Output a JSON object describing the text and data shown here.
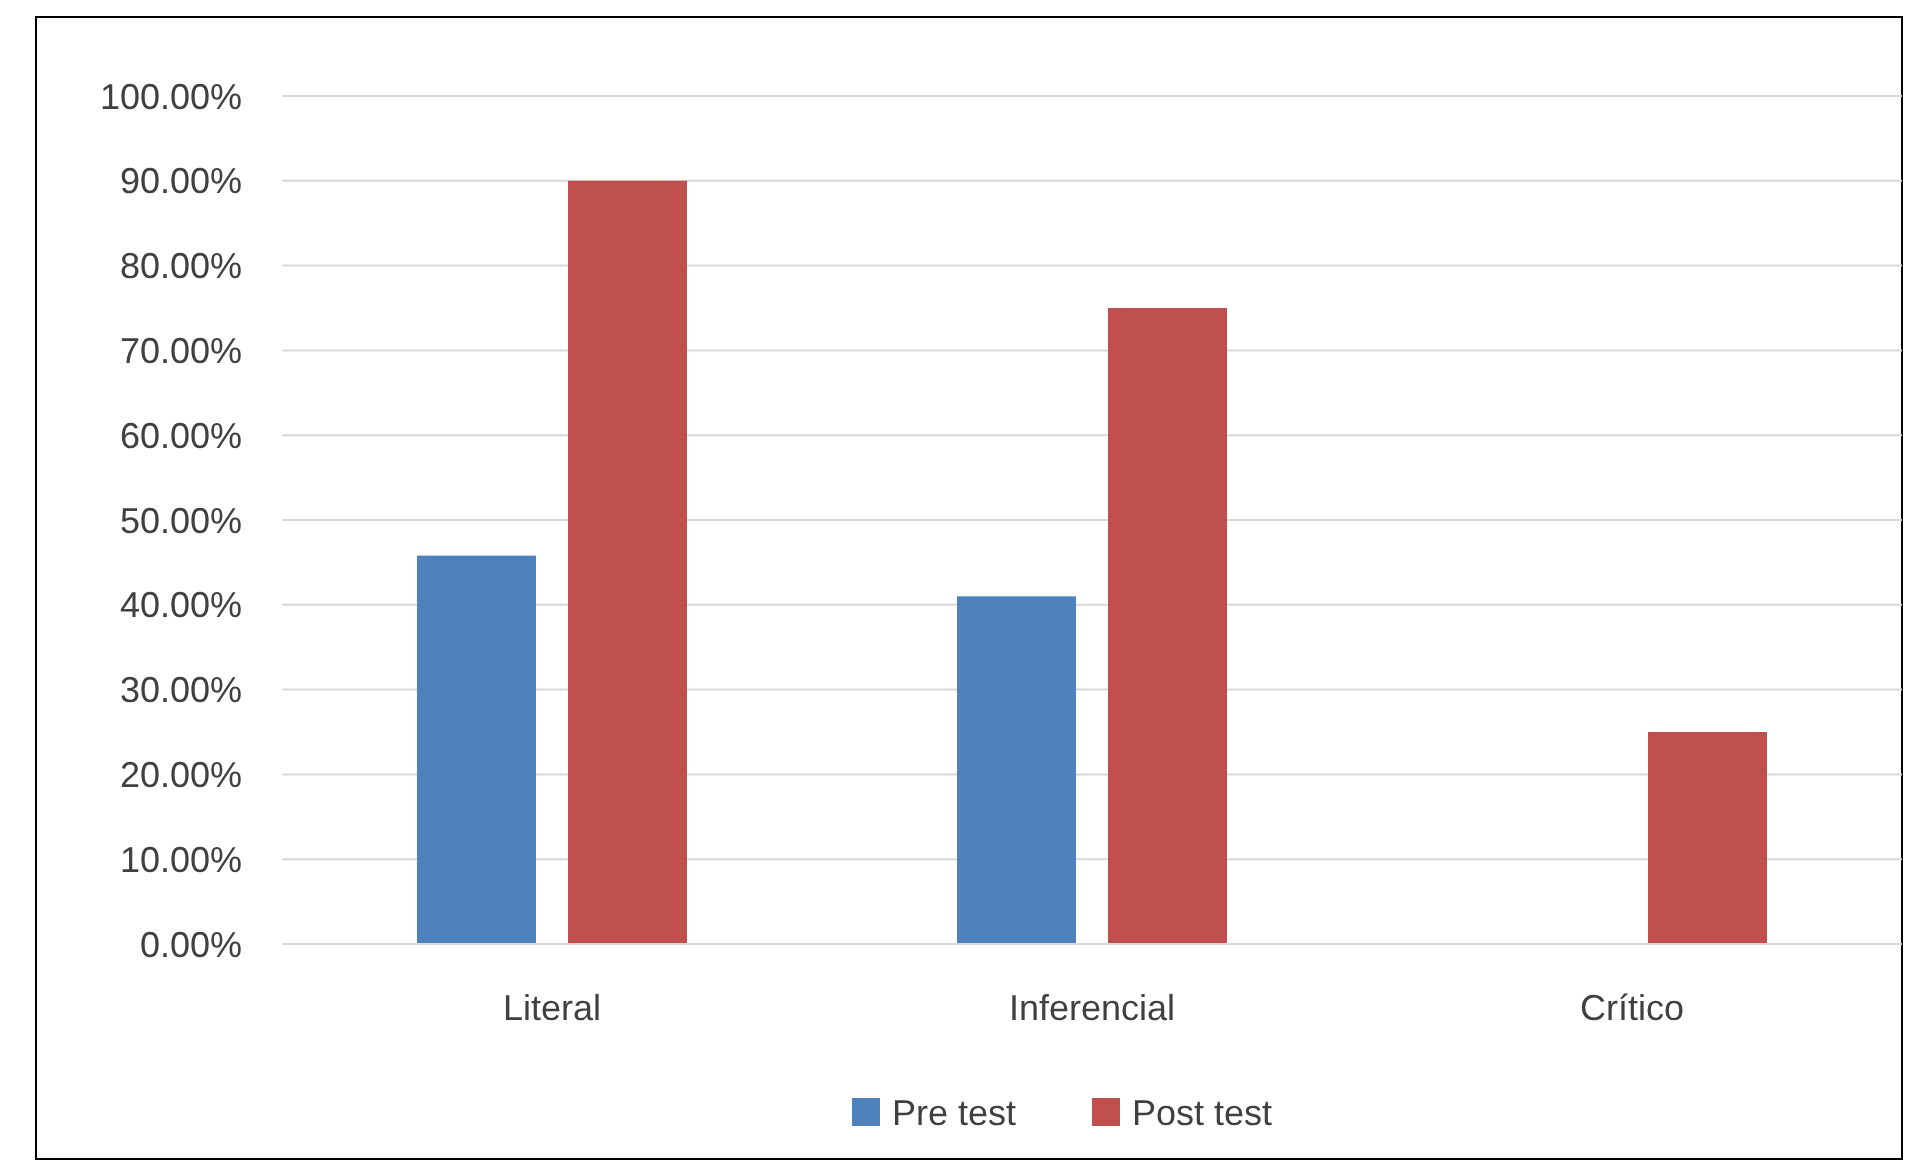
{
  "chart_data": {
    "type": "bar",
    "categories": [
      "Literal",
      "Inferencial",
      "Crítico"
    ],
    "series": [
      {
        "name": "Pre test",
        "color": "#4f81bd",
        "values": [
          45.8,
          41,
          0
        ]
      },
      {
        "name": "Post test",
        "color": "#c0504d",
        "values": [
          90,
          75,
          25
        ]
      }
    ],
    "ylim": [
      0,
      100
    ],
    "yticks": [
      {
        "value": 0,
        "label": "0.00%"
      },
      {
        "value": 10,
        "label": "10.00%"
      },
      {
        "value": 20,
        "label": "20.00%"
      },
      {
        "value": 30,
        "label": "30.00%"
      },
      {
        "value": 40,
        "label": "40.00%"
      },
      {
        "value": 50,
        "label": "50.00%"
      },
      {
        "value": 60,
        "label": "60.00%"
      },
      {
        "value": 70,
        "label": "70.00%"
      },
      {
        "value": 80,
        "label": "80.00%"
      },
      {
        "value": 90,
        "label": "90.00%"
      },
      {
        "value": 100,
        "label": "100.00%"
      }
    ],
    "grid": "y",
    "legend": "bottom"
  }
}
